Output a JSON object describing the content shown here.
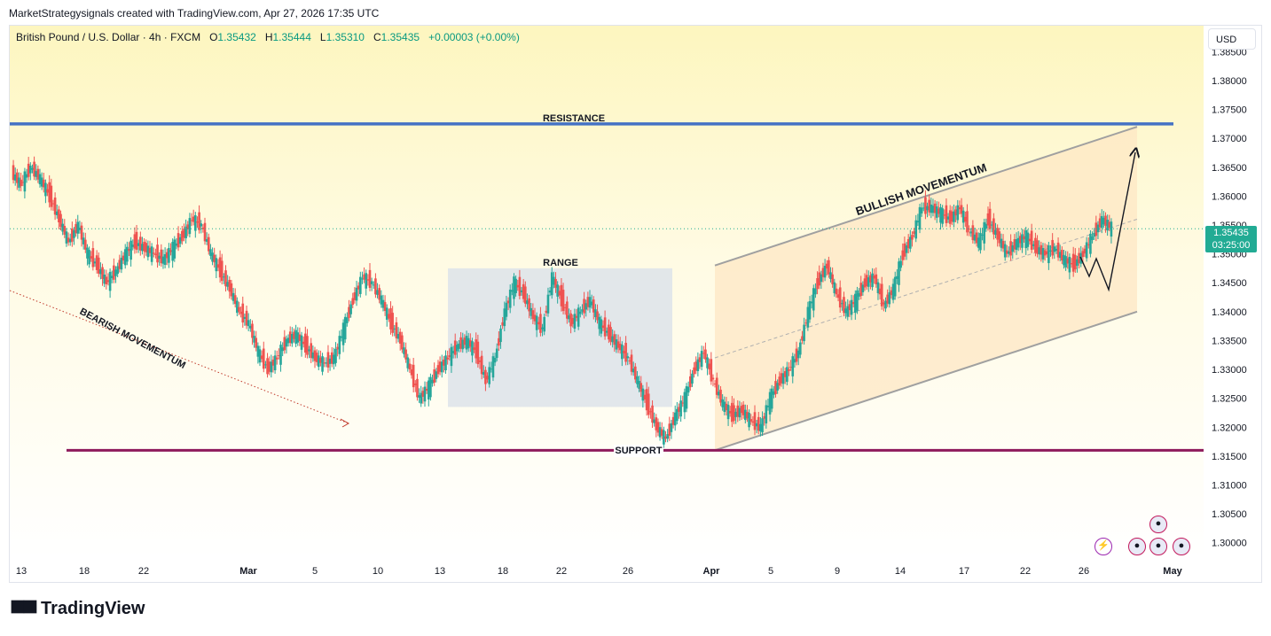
{
  "header": {
    "attribution": "MarketStrategysignals created with TradingView.com, Apr 27, 2026 17:35 UTC"
  },
  "legend": {
    "symbol": "British Pound / U.S. Dollar · 4h · FXCM",
    "open_label": "O",
    "open": "1.35432",
    "high_label": "H",
    "high": "1.35444",
    "low_label": "L",
    "low": "1.35310",
    "close_label": "C",
    "close": "1.35435",
    "change": "+0.00003 (+0.00%)"
  },
  "currency_button": "USD",
  "price_tag": {
    "price": "1.35435",
    "countdown": "03:25:00"
  },
  "annotations": {
    "resistance": "RESISTANCE",
    "support": "SUPPORT",
    "range": "RANGE",
    "bearish": "BEARISH MOVEMENTUM",
    "bullish": "BULLISH MOVEMENTUM"
  },
  "footer": {
    "brand": "TradingView"
  },
  "colors": {
    "bull": "#26a69a",
    "bear": "#ef5350",
    "resistance": "#4472c4",
    "support": "#8e1a5b",
    "channel_fill": "#fde7c4"
  },
  "chart_data": {
    "type": "candlestick",
    "y_axis": {
      "ticks": [
        "1.30000",
        "1.30500",
        "1.31000",
        "1.31500",
        "1.32000",
        "1.32500",
        "1.33000",
        "1.33500",
        "1.34000",
        "1.34500",
        "1.35000",
        "1.35500",
        "1.36000",
        "1.36500",
        "1.37000",
        "1.37500",
        "1.38000",
        "1.38500"
      ],
      "ylim": [
        1.2975,
        1.3895
      ]
    },
    "x_axis": {
      "ticks": [
        "13",
        "18",
        "22",
        "Mar",
        "5",
        "10",
        "13",
        "18",
        "22",
        "26",
        "Apr",
        "5",
        "9",
        "14",
        "17",
        "22",
        "26",
        "May"
      ]
    },
    "levels": {
      "resistance": 1.3725,
      "support": 1.316
    },
    "range_box": {
      "top": 1.3475,
      "bottom": 1.3235
    },
    "channel": {
      "upper_start": 1.348,
      "upper_end": 1.372,
      "lower_start": 1.316,
      "lower_end": 1.34
    },
    "last_price": 1.35435,
    "path": [
      1.364,
      1.362,
      1.365,
      1.363,
      1.36,
      1.356,
      1.352,
      1.355,
      1.35,
      1.348,
      1.345,
      1.347,
      1.35,
      1.352,
      1.351,
      1.35,
      1.349,
      1.351,
      1.353,
      1.356,
      1.355,
      1.35,
      1.347,
      1.344,
      1.34,
      1.338,
      1.333,
      1.33,
      1.332,
      1.335,
      1.336,
      1.334,
      1.332,
      1.331,
      1.332,
      1.337,
      1.342,
      1.346,
      1.345,
      1.342,
      1.338,
      1.335,
      1.33,
      1.325,
      1.327,
      1.33,
      1.332,
      1.334,
      1.335,
      1.333,
      1.328,
      1.332,
      1.34,
      1.345,
      1.343,
      1.339,
      1.337,
      1.346,
      1.342,
      1.338,
      1.34,
      1.342,
      1.338,
      1.336,
      1.334,
      1.332,
      1.328,
      1.324,
      1.32,
      1.318,
      1.322,
      1.325,
      1.33,
      1.333,
      1.328,
      1.324,
      1.322,
      1.323,
      1.321,
      1.32,
      1.325,
      1.328,
      1.33,
      1.333,
      1.34,
      1.345,
      1.348,
      1.343,
      1.34,
      1.342,
      1.345,
      1.346,
      1.341,
      1.344,
      1.35,
      1.353,
      1.358,
      1.358,
      1.357,
      1.356,
      1.358,
      1.354,
      1.352,
      1.356,
      1.353,
      1.35,
      1.352,
      1.353,
      1.351,
      1.35,
      1.351,
      1.349,
      1.348,
      1.35,
      1.353,
      1.356,
      1.3545
    ]
  }
}
